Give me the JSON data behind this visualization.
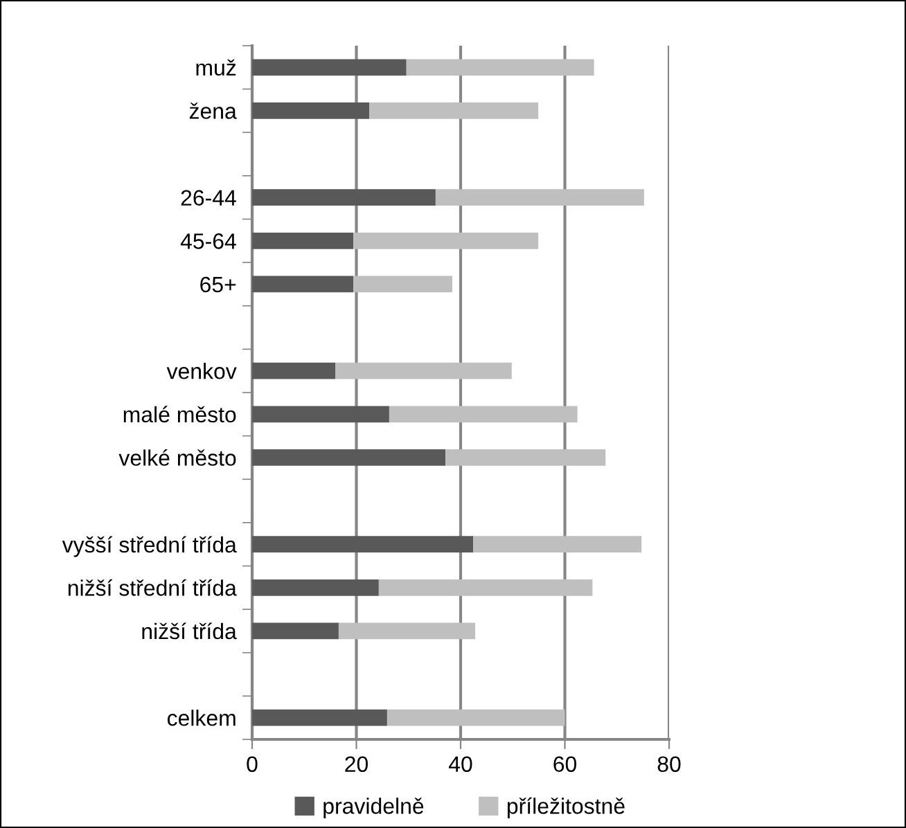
{
  "chart_data": {
    "type": "bar",
    "orientation": "horizontal",
    "stacked": true,
    "categories": [
      "muž",
      "žena",
      null,
      "26-44",
      "45-64",
      "65+",
      null,
      "venkov",
      "malé město",
      "velké město",
      null,
      "vyšší střední třída",
      "nižší střední třída",
      "nižší třída",
      null,
      "celkem"
    ],
    "series": [
      {
        "name": "pravidelně",
        "color": "#595959",
        "values": [
          29.6,
          22.5,
          null,
          35.2,
          19.4,
          19.4,
          null,
          16.0,
          26.3,
          37.1,
          null,
          42.4,
          24.3,
          16.6,
          null,
          25.9
        ]
      },
      {
        "name": "příležitostně",
        "color": "#bfbfbf",
        "values": [
          36.0,
          32.4,
          null,
          40.0,
          35.5,
          19.0,
          null,
          33.8,
          36.1,
          30.7,
          null,
          32.3,
          41.0,
          26.2,
          null,
          34.1
        ]
      }
    ],
    "xlim": [
      0,
      80
    ],
    "xticks": [
      0,
      20,
      40,
      60,
      80
    ],
    "grid": "x",
    "legend": "bottom"
  }
}
